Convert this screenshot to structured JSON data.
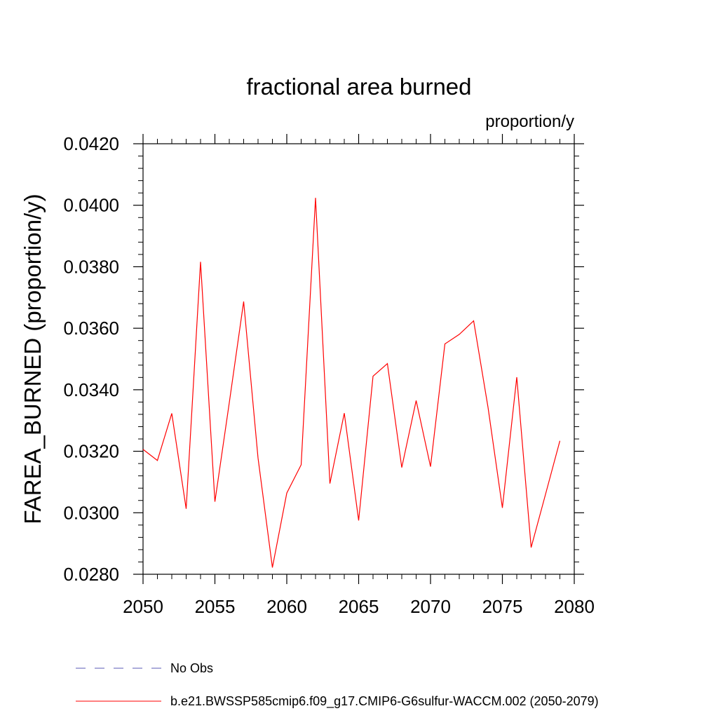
{
  "chart_data": {
    "type": "line",
    "title": "fractional area burned",
    "subtitle": "proportion/y",
    "ylabel": "FAREA_BURNED  (proportion/y)",
    "xlabel": "",
    "xlim": [
      2050,
      2080
    ],
    "ylim": [
      0.028,
      0.042
    ],
    "x_ticks": [
      2050,
      2055,
      2060,
      2065,
      2070,
      2075,
      2080
    ],
    "x_tick_labels": [
      "2050",
      "2055",
      "2060",
      "2065",
      "2070",
      "2075",
      "2080"
    ],
    "y_ticks": [
      0.028,
      0.03,
      0.032,
      0.034,
      0.036,
      0.038,
      0.04,
      0.042
    ],
    "y_tick_labels": [
      "0.0280",
      "0.0300",
      "0.0320",
      "0.0340",
      "0.0360",
      "0.0380",
      "0.0400",
      "0.0420"
    ],
    "grid": false,
    "legend_position": "bottom",
    "series": [
      {
        "name": "b.e21.BWSSP585cmip6.f09_g17.CMIP6-G6sulfur-WACCM.002 (2050-2079)",
        "color": "#ff0000",
        "dash": "solid",
        "x": [
          2050,
          2051,
          2052,
          2053,
          2054,
          2055,
          2056,
          2057,
          2058,
          2059,
          2060,
          2061,
          2062,
          2063,
          2064,
          2065,
          2066,
          2067,
          2068,
          2069,
          2070,
          2071,
          2072,
          2073,
          2074,
          2075,
          2076,
          2077,
          2078,
          2079
        ],
        "values": [
          0.03206,
          0.0317,
          0.03323,
          0.03013,
          0.03816,
          0.03036,
          0.03358,
          0.03687,
          0.03178,
          0.02822,
          0.03064,
          0.03156,
          0.04024,
          0.03095,
          0.03324,
          0.02975,
          0.03444,
          0.03485,
          0.03147,
          0.03365,
          0.0315,
          0.03549,
          0.0358,
          0.03624,
          0.03343,
          0.03016,
          0.03441,
          0.02887,
          0.0306,
          0.03234
        ]
      }
    ],
    "legend": [
      {
        "label": "No Obs",
        "color": "#5a5ab4",
        "dash": "dashed"
      },
      {
        "label": "b.e21.BWSSP585cmip6.f09_g17.CMIP6-G6sulfur-WACCM.002 (2050-2079)",
        "color": "#ff0000",
        "dash": "solid"
      }
    ]
  }
}
